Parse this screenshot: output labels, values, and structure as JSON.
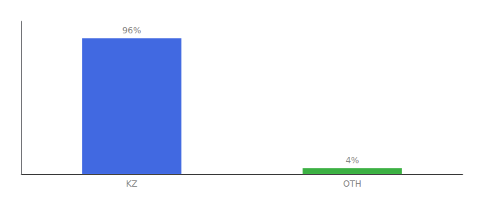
{
  "chart_data": {
    "type": "bar",
    "categories": [
      "KZ",
      "OTH"
    ],
    "values": [
      96,
      4
    ],
    "value_labels": [
      "96%",
      "4%"
    ],
    "colors": [
      "#4169e1",
      "#3cb043"
    ],
    "ylim": [
      0,
      108
    ],
    "grid": false,
    "tick_labels": "x",
    "data_labels": true
  }
}
